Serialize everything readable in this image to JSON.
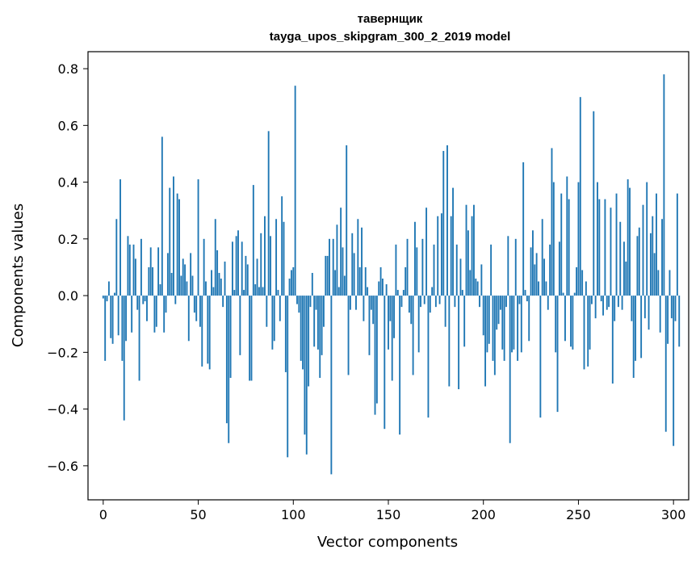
{
  "chart_data": {
    "type": "bar",
    "title": "тавернщик",
    "subtitle": "tayga_upos_skipgram_300_2_2019 model",
    "xlabel": "Vector components",
    "ylabel": "Components values",
    "xlim": [
      -8,
      308
    ],
    "ylim": [
      -0.72,
      0.86
    ],
    "xticks": [
      0,
      50,
      100,
      150,
      200,
      250,
      300
    ],
    "xtick_labels": [
      "0",
      "50",
      "100",
      "150",
      "200",
      "250",
      "300"
    ],
    "yticks": [
      -0.6,
      -0.4,
      -0.2,
      0.0,
      0.2,
      0.4,
      0.6,
      0.8
    ],
    "ytick_labels": [
      "−0.6",
      "−0.4",
      "−0.2",
      "0.0",
      "0.2",
      "0.4",
      "0.6",
      "0.8"
    ],
    "bar_color": "#1f77b4",
    "grid": false,
    "series": [
      {
        "values": [
          -0.01,
          -0.23,
          -0.02,
          0.05,
          -0.15,
          -0.17,
          0.01,
          0.27,
          -0.14,
          0.41,
          -0.23,
          -0.44,
          -0.16,
          0.21,
          0.18,
          -0.13,
          0.18,
          0.13,
          -0.05,
          -0.3,
          0.2,
          -0.03,
          -0.02,
          -0.09,
          0.1,
          0.17,
          0.1,
          -0.13,
          -0.11,
          0.17,
          0.04,
          0.56,
          -0.13,
          -0.06,
          0.15,
          0.38,
          0.08,
          0.42,
          -0.03,
          0.36,
          0.34,
          0.07,
          0.13,
          0.11,
          0.05,
          -0.16,
          0.15,
          0.07,
          -0.06,
          -0.09,
          0.41,
          -0.11,
          -0.25,
          0.2,
          0.05,
          -0.24,
          -0.26,
          0.09,
          0.03,
          0.27,
          0.16,
          0.08,
          0.06,
          -0.04,
          0.12,
          -0.45,
          -0.52,
          -0.29,
          0.19,
          0.02,
          0.21,
          0.23,
          -0.21,
          0.19,
          0.02,
          0.14,
          0.11,
          -0.3,
          -0.3,
          0.39,
          0.04,
          0.13,
          0.03,
          0.22,
          0.03,
          0.28,
          -0.11,
          0.58,
          0.21,
          -0.19,
          -0.16,
          0.27,
          0.02,
          -0.09,
          0.35,
          0.26,
          -0.27,
          -0.57,
          0.06,
          0.09,
          0.1,
          0.74,
          -0.03,
          -0.06,
          -0.23,
          -0.26,
          -0.49,
          -0.56,
          -0.32,
          -0.04,
          0.08,
          -0.18,
          -0.05,
          -0.19,
          -0.29,
          -0.21,
          -0.11,
          0.14,
          0.14,
          0.2,
          -0.63,
          0.2,
          0.09,
          0.25,
          0.03,
          0.31,
          0.17,
          0.07,
          0.53,
          -0.28,
          -0.05,
          0.22,
          0.15,
          -0.05,
          0.27,
          0.1,
          0.24,
          -0.09,
          0.1,
          0.03,
          -0.21,
          -0.05,
          -0.1,
          -0.42,
          -0.38,
          0.05,
          0.1,
          0.06,
          -0.47,
          0.04,
          -0.19,
          -0.09,
          -0.3,
          -0.15,
          0.18,
          0.02,
          -0.49,
          -0.04,
          0.02,
          0.1,
          0.2,
          -0.06,
          -0.1,
          -0.28,
          0.26,
          0.17,
          -0.2,
          -0.04,
          0.2,
          -0.03,
          0.31,
          -0.43,
          -0.06,
          0.03,
          0.18,
          -0.04,
          0.28,
          -0.03,
          0.29,
          0.51,
          -0.11,
          0.53,
          -0.32,
          0.28,
          0.38,
          -0.04,
          0.18,
          -0.33,
          0.13,
          0.02,
          -0.18,
          0.32,
          0.23,
          0.09,
          0.28,
          0.32,
          0.06,
          0.05,
          -0.04,
          0.11,
          -0.14,
          -0.32,
          -0.2,
          -0.17,
          0.18,
          -0.23,
          -0.28,
          -0.12,
          -0.1,
          -0.05,
          -0.19,
          -0.23,
          -0.04,
          0.21,
          -0.52,
          -0.2,
          -0.19,
          0.2,
          -0.23,
          -0.03,
          -0.2,
          0.47,
          0.02,
          -0.02,
          -0.16,
          0.17,
          0.23,
          0.11,
          0.15,
          0.05,
          -0.43,
          0.27,
          0.13,
          0.05,
          -0.05,
          0.18,
          0.52,
          0.4,
          -0.2,
          -0.41,
          0.19,
          0.36,
          0.01,
          -0.16,
          0.42,
          0.34,
          -0.18,
          -0.19,
          0.01,
          0.1,
          0.4,
          0.7,
          0.09,
          -0.26,
          0.05,
          -0.25,
          -0.19,
          -0.03,
          0.65,
          -0.08,
          0.4,
          0.34,
          -0.02,
          -0.07,
          0.34,
          -0.05,
          -0.04,
          0.31,
          -0.31,
          -0.09,
          0.36,
          -0.04,
          0.26,
          -0.05,
          0.19,
          0.12,
          0.41,
          0.38,
          -0.09,
          -0.29,
          -0.23,
          0.21,
          0.24,
          -0.22,
          0.32,
          -0.08,
          0.4,
          -0.12,
          0.22,
          0.28,
          0.15,
          0.36,
          0.09,
          -0.13,
          0.27,
          0.78,
          -0.48,
          -0.17,
          0.09,
          -0.08,
          -0.53,
          -0.09,
          0.36,
          -0.18
        ]
      }
    ]
  }
}
